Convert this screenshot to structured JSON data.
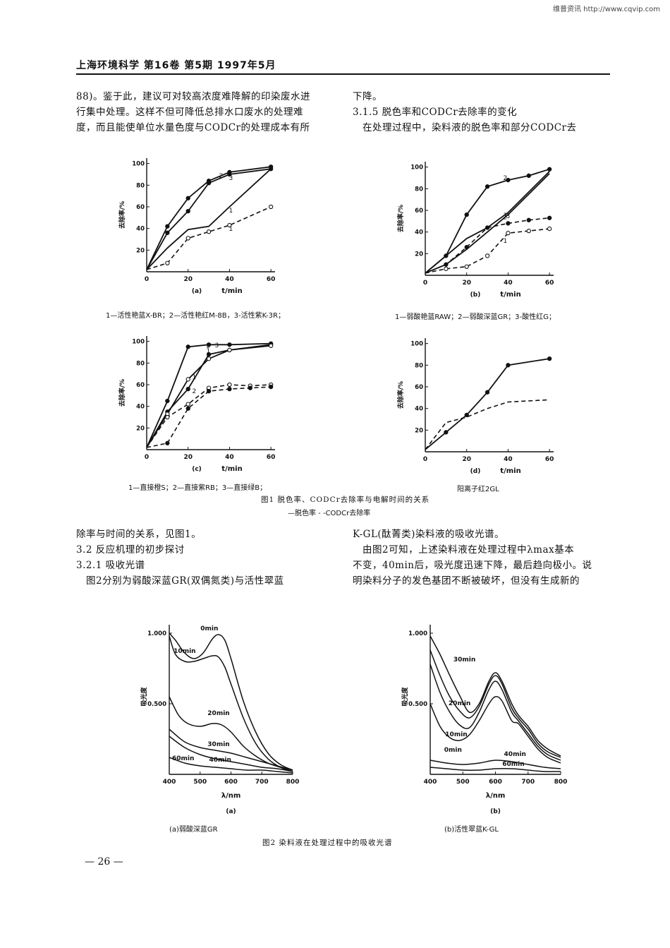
{
  "watermark": "维普资讯 http://www.cqvip.com",
  "header": "上海环境科学   第16卷   第5期   1997年5月",
  "left_col_top": [
    "88)。鉴于此，建议可对较高浓度难降解的印染废水进",
    "行集中处理。这样不但可降低总排水口废水的处理难",
    "度，而且能使单位水量色度与CODCr的处理成本有所"
  ],
  "right_col_top": [
    "下降。",
    "3.1.5 脱色率和CODCr去除率的变化",
    "　在处理过程中，染料液的脱色率和部分CODCr去"
  ],
  "fig1": {
    "caption": "图1   脱色率、CODCr去除率与电解时间的关系",
    "legend_line": "—脱色率    - -CODCr去除率",
    "panels": [
      {
        "id": "a",
        "label": "(a)",
        "xlabel": "t/min",
        "ylabel": "去除率/%",
        "sub_caption": "1—活性艳蓝X-BR；2—活性艳红M-8B，3-活性紫K-3R；",
        "xticks": [
          "0",
          "20",
          "40",
          "60"
        ],
        "yticks": [
          "20",
          "40",
          "60",
          "80",
          "100"
        ],
        "series": [
          {
            "curve_label": "2",
            "style": "solid",
            "marker": "filled",
            "x": [
              0,
              10,
              20,
              30,
              40,
              60
            ],
            "y": [
              2,
              42,
              68,
              84,
              92,
              97
            ]
          },
          {
            "curve_label": "3",
            "style": "solid",
            "marker": "filled",
            "x": [
              0,
              10,
              20,
              30,
              40,
              60
            ],
            "y": [
              2,
              36,
              56,
              82,
              90,
              95
            ]
          },
          {
            "curve_label": "1",
            "style": "solid",
            "marker": "none",
            "x": [
              0,
              10,
              20,
              30,
              40,
              60
            ],
            "y": [
              2,
              22,
              39,
              42,
              60,
              95
            ]
          },
          {
            "curve_label": "1",
            "style": "dashed",
            "marker": "open",
            "x": [
              0,
              10,
              20,
              30,
              40,
              60
            ],
            "y": [
              2,
              8,
              31,
              37,
              43,
              60
            ]
          }
        ]
      },
      {
        "id": "b",
        "label": "(b)",
        "xlabel": "t/min",
        "ylabel": "去除率/%",
        "sub_caption": "1—弱酸艳蓝RAW；2—弱酸深蓝GR；3-酸性红G；",
        "xticks": [
          "0",
          "20",
          "40",
          "60"
        ],
        "yticks": [
          "20",
          "40",
          "60",
          "80",
          "100"
        ],
        "series": [
          {
            "curve_label": "2",
            "style": "solid",
            "marker": "filled",
            "x": [
              0,
              10,
              20,
              30,
              40,
              50,
              60
            ],
            "y": [
              2,
              18,
              56,
              82,
              88,
              92,
              98
            ]
          },
          {
            "curve_label": "3",
            "style": "solid",
            "marker": "none",
            "x": [
              0,
              10,
              20,
              30,
              40,
              60
            ],
            "y": [
              2,
              18,
              34,
              44,
              58,
              96
            ]
          },
          {
            "curve_label": "1",
            "style": "solid",
            "marker": "none",
            "x": [
              0,
              10,
              20,
              30,
              40,
              60
            ],
            "y": [
              2,
              10,
              24,
              40,
              56,
              94
            ]
          },
          {
            "curve_label": "2",
            "style": "dashed",
            "marker": "filled",
            "x": [
              0,
              10,
              20,
              30,
              40,
              50,
              60
            ],
            "y": [
              2,
              10,
              26,
              44,
              48,
              51,
              53
            ]
          },
          {
            "curve_label": "1",
            "style": "dashed",
            "marker": "open",
            "x": [
              0,
              10,
              20,
              30,
              40,
              50,
              60
            ],
            "y": [
              2,
              6,
              8,
              18,
              39,
              41,
              43
            ]
          }
        ]
      },
      {
        "id": "c",
        "label": "(c)",
        "xlabel": "t/min",
        "ylabel": "去除率/%",
        "sub_caption": "1—直接橙S；2—直接紫RB；3—直接绿B；",
        "xticks": [
          "0",
          "20",
          "40",
          "60"
        ],
        "yticks": [
          "20",
          "40",
          "60",
          "80",
          "100"
        ],
        "series": [
          {
            "curve_label": "2",
            "style": "solid",
            "marker": "filled",
            "x": [
              0,
              10,
              20,
              30,
              40,
              60
            ],
            "y": [
              2,
              45,
              95,
              97,
              97,
              98
            ]
          },
          {
            "curve_label": "1",
            "style": "solid",
            "marker": "filled",
            "x": [
              0,
              10,
              20,
              30,
              40,
              60
            ],
            "y": [
              2,
              35,
              56,
              88,
              92,
              97
            ]
          },
          {
            "curve_label": "3",
            "style": "solid",
            "marker": "open",
            "x": [
              0,
              10,
              20,
              30,
              40,
              60
            ],
            "y": [
              2,
              33,
              65,
              84,
              92,
              96
            ]
          },
          {
            "curve_label": "1",
            "style": "dashed",
            "marker": "open",
            "x": [
              0,
              10,
              20,
              30,
              40,
              50,
              60
            ],
            "y": [
              2,
              30,
              42,
              57,
              60,
              59,
              60
            ]
          },
          {
            "curve_label": "2",
            "style": "dashed",
            "marker": "filled",
            "x": [
              0,
              10,
              20,
              30,
              40,
              50,
              60
            ],
            "y": [
              2,
              6,
              38,
              54,
              56,
              57,
              58
            ]
          }
        ]
      },
      {
        "id": "d",
        "label": "(d)",
        "xlabel": "t/min",
        "ylabel": "去除率/%",
        "sub_caption": "阳离子红2GL",
        "xticks": [
          "0",
          "20",
          "40",
          "60"
        ],
        "yticks": [
          "20",
          "40",
          "60",
          "80",
          "100"
        ],
        "series": [
          {
            "curve_label": "",
            "style": "solid",
            "marker": "filled",
            "x": [
              0,
              10,
              20,
              30,
              40,
              60
            ],
            "y": [
              2,
              18,
              34,
              55,
              80,
              86
            ]
          },
          {
            "curve_label": "",
            "style": "dashed",
            "marker": "none",
            "x": [
              0,
              10,
              20,
              30,
              40,
              50,
              60
            ],
            "y": [
              2,
              27,
              32,
              40,
              46,
              47,
              48
            ]
          }
        ]
      }
    ]
  },
  "left_col_mid": [
    "除率与时间的关系，见图1。",
    "3.2 反应机理的初步探讨",
    "3.2.1 吸收光谱",
    "　图2分别为弱酸深蓝GR(双偶氮类)与活性翠蓝"
  ],
  "right_col_mid": [
    "K-GL(酞菁类)染料液的吸收光谱。",
    "　由图2可知，上述染料液在处理过程中λmax基本",
    "不变，40min后，吸光度迅速下降，最后趋向极小。说",
    "明染料分子的发色基团不断被破坏，但没有生成新的"
  ],
  "fig2": {
    "caption": "图2   染料液在处理过程中的吸收光谱",
    "panels": [
      {
        "id": "a",
        "label": "(a)",
        "sub_caption": "(a)弱酸深蓝GR",
        "xlabel": "λ/nm",
        "ylabel": "吸光度",
        "xticks": [
          "400",
          "500",
          "600",
          "700",
          "800"
        ],
        "yticks": [
          "0.500",
          "1.000"
        ],
        "series": [
          {
            "name": "0min",
            "x": [
              400,
              420,
              450,
              480,
              510,
              540,
              560,
              580,
              600,
              640,
              680,
              720,
              760,
              800
            ],
            "y": [
              1.0,
              0.95,
              0.86,
              0.82,
              0.86,
              0.96,
              0.99,
              0.95,
              0.82,
              0.52,
              0.3,
              0.15,
              0.07,
              0.03
            ]
          },
          {
            "name": "10min",
            "x": [
              400,
              420,
              450,
              480,
              510,
              540,
              560,
              580,
              600,
              640,
              680,
              720,
              760,
              800
            ],
            "y": [
              0.98,
              0.85,
              0.8,
              0.8,
              0.82,
              0.84,
              0.83,
              0.76,
              0.64,
              0.4,
              0.22,
              0.11,
              0.05,
              0.02
            ]
          },
          {
            "name": "20min",
            "x": [
              400,
              430,
              460,
              500,
              540,
              570,
              600,
              640,
              680,
              720,
              760,
              800
            ],
            "y": [
              0.55,
              0.42,
              0.36,
              0.34,
              0.36,
              0.35,
              0.3,
              0.2,
              0.13,
              0.08,
              0.05,
              0.03
            ]
          },
          {
            "name": "30min",
            "x": [
              400,
              450,
              500,
              550,
              600,
              650,
              700,
              750,
              800
            ],
            "y": [
              0.32,
              0.23,
              0.19,
              0.17,
              0.15,
              0.12,
              0.09,
              0.06,
              0.03
            ]
          },
          {
            "name": "40min",
            "x": [
              400,
              450,
              500,
              550,
              600,
              650,
              700,
              750,
              800
            ],
            "y": [
              0.27,
              0.19,
              0.14,
              0.11,
              0.09,
              0.07,
              0.05,
              0.04,
              0.02
            ]
          },
          {
            "name": "60min",
            "x": [
              400,
              450,
              500,
              550,
              600,
              650,
              700,
              750,
              800
            ],
            "y": [
              0.12,
              0.08,
              0.06,
              0.05,
              0.04,
              0.03,
              0.03,
              0.02,
              0.01
            ]
          }
        ]
      },
      {
        "id": "b",
        "label": "(b)",
        "sub_caption": "(b)活性翠蓝K-GL",
        "xlabel": "λ/nm",
        "ylabel": "吸光度",
        "xticks": [
          "400",
          "500",
          "600",
          "700",
          "800"
        ],
        "yticks": [
          "0.500",
          "1.000"
        ],
        "series": [
          {
            "name": "30min",
            "x": [
              400,
              430,
              460,
              490,
              520,
              550,
              580,
              600,
              620,
              650,
              670,
              700,
              730,
              760,
              800
            ],
            "y": [
              0.98,
              0.85,
              0.7,
              0.56,
              0.44,
              0.5,
              0.66,
              0.72,
              0.66,
              0.5,
              0.42,
              0.34,
              0.24,
              0.18,
              0.13
            ]
          },
          {
            "name": "20min",
            "x": [
              400,
              430,
              460,
              490,
              520,
              550,
              580,
              600,
              620,
              650,
              670,
              700,
              730,
              760,
              800
            ],
            "y": [
              0.88,
              0.7,
              0.55,
              0.45,
              0.4,
              0.48,
              0.64,
              0.7,
              0.64,
              0.47,
              0.4,
              0.32,
              0.22,
              0.16,
              0.12
            ]
          },
          {
            "name": "10min",
            "x": [
              400,
              430,
              460,
              490,
              520,
              550,
              580,
              600,
              620,
              650,
              670,
              700,
              730,
              760,
              800
            ],
            "y": [
              0.78,
              0.58,
              0.44,
              0.35,
              0.33,
              0.44,
              0.6,
              0.66,
              0.6,
              0.44,
              0.38,
              0.29,
              0.2,
              0.14,
              0.1
            ]
          },
          {
            "name": "0min",
            "x": [
              400,
              430,
              460,
              490,
              520,
              550,
              580,
              600,
              620,
              650,
              670,
              700,
              730,
              760,
              800
            ],
            "y": [
              0.5,
              0.34,
              0.26,
              0.24,
              0.28,
              0.38,
              0.5,
              0.55,
              0.52,
              0.38,
              0.36,
              0.27,
              0.18,
              0.12,
              0.08
            ]
          },
          {
            "name": "40min",
            "x": [
              400,
              450,
              500,
              550,
              600,
              650,
              700,
              750,
              800
            ],
            "y": [
              0.1,
              0.08,
              0.07,
              0.08,
              0.1,
              0.09,
              0.07,
              0.05,
              0.04
            ]
          },
          {
            "name": "60min",
            "x": [
              400,
              450,
              500,
              550,
              600,
              650,
              700,
              750,
              800
            ],
            "y": [
              0.05,
              0.04,
              0.03,
              0.03,
              0.04,
              0.04,
              0.03,
              0.02,
              0.02
            ]
          }
        ]
      }
    ]
  },
  "page_number": "— 26 —"
}
